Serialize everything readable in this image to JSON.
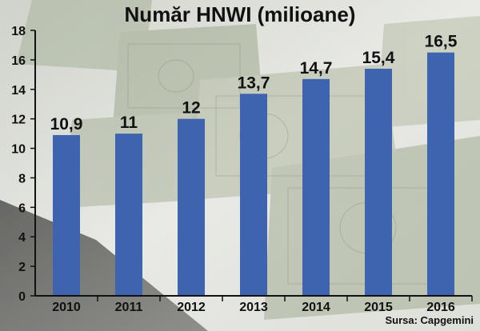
{
  "chart_data": {
    "type": "bar",
    "title": "Număr HNWI (milioane)",
    "categories": [
      "2010",
      "2011",
      "2012",
      "2013",
      "2014",
      "2015",
      "2016"
    ],
    "values": [
      10.9,
      11,
      12,
      13.7,
      14.7,
      15.4,
      16.5
    ],
    "value_labels": [
      "10,9",
      "11",
      "12",
      "13,7",
      "14,7",
      "15,4",
      "16,5"
    ],
    "yticks": [
      "0",
      "2",
      "4",
      "6",
      "8",
      "10",
      "12",
      "14",
      "16",
      "18"
    ],
    "ylim": [
      0,
      18
    ],
    "grid": false,
    "bar_color": "#3e64b0",
    "source": "Sursa: Capgemini"
  }
}
